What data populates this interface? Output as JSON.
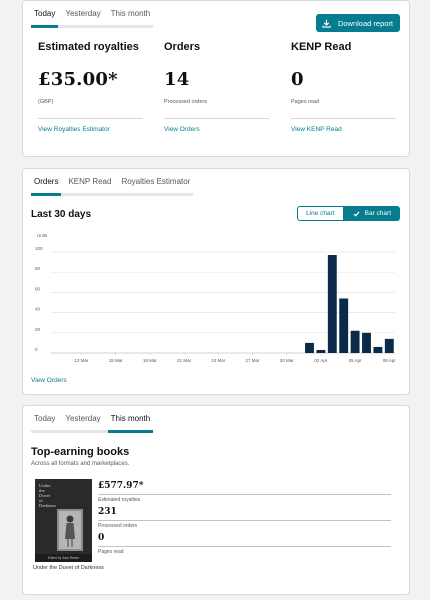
{
  "top": {
    "tabs": [
      "Today",
      "Yesterday",
      "This month"
    ],
    "download_label": "Download report",
    "stats": [
      {
        "title": "Estimated royalties",
        "value": "£35.00*",
        "sub": "(GBP)",
        "link": "View Royalties Estimator"
      },
      {
        "title": "Orders",
        "value": "14",
        "sub": "Processed orders",
        "link": "View Orders"
      },
      {
        "title": "KENP Read",
        "value": "0",
        "sub": "Pages read",
        "link": "View KENP Read"
      }
    ]
  },
  "orders_card": {
    "tabs": [
      "Orders",
      "KENP Read",
      "Royalties Estimator"
    ],
    "title": "Last 30 days",
    "line_chart_label": "Line chart",
    "bar_chart_label": "Bar chart",
    "view_orders": "View Orders"
  },
  "chart_data": {
    "type": "bar",
    "ylabel": "Units",
    "ylim": [
      0,
      100
    ],
    "yticks": [
      0,
      20,
      40,
      60,
      80,
      100
    ],
    "xtick_labels": [
      "12 Mar",
      "15 Mar",
      "18 Mar",
      "21 Mar",
      "24 Mar",
      "27 Mar",
      "30 Mar",
      "02 Apr",
      "05 Apr",
      "08 Apr"
    ],
    "xtick_index": [
      2,
      5,
      8,
      11,
      14,
      17,
      20,
      23,
      26,
      29
    ],
    "categories": [
      "10 Mar",
      "11 Mar",
      "12 Mar",
      "13 Mar",
      "14 Mar",
      "15 Mar",
      "16 Mar",
      "17 Mar",
      "18 Mar",
      "19 Mar",
      "20 Mar",
      "21 Mar",
      "22 Mar",
      "23 Mar",
      "24 Mar",
      "25 Mar",
      "26 Mar",
      "27 Mar",
      "28 Mar",
      "29 Mar",
      "30 Mar",
      "31 Mar",
      "01 Apr",
      "02 Apr",
      "03 Apr",
      "04 Apr",
      "05 Apr",
      "06 Apr",
      "07 Apr",
      "08 Apr"
    ],
    "values": [
      0,
      0,
      0,
      0,
      0,
      0,
      0,
      0,
      0,
      0,
      0,
      0,
      0,
      0,
      0,
      0,
      0,
      0,
      0,
      0,
      0,
      0,
      10,
      3,
      97,
      54,
      22,
      20,
      6,
      14
    ],
    "grid": true,
    "bar_color": "#0b2a4a"
  },
  "books_card": {
    "tabs": [
      "Today",
      "Yesterday",
      "This month"
    ],
    "title": "Top-earning books",
    "subtitle": "Across all formats and marketplaces.",
    "book": {
      "cover_title": "Under the Duvet of Darkness",
      "cover_title_lines": [
        "Under",
        "the",
        "Duvet",
        "of",
        "Darkness"
      ],
      "cover_credit": "Edited by Sara Reede",
      "name": "Under the Duvet of Darkness",
      "stats": [
        {
          "value": "£577.97*",
          "label": "Estimated royalties"
        },
        {
          "value": "231",
          "label": "Processed orders"
        },
        {
          "value": "0",
          "label": "Pages read"
        }
      ]
    }
  },
  "colors": {
    "accent": "#067d8e",
    "bar": "#0b2a4a"
  }
}
